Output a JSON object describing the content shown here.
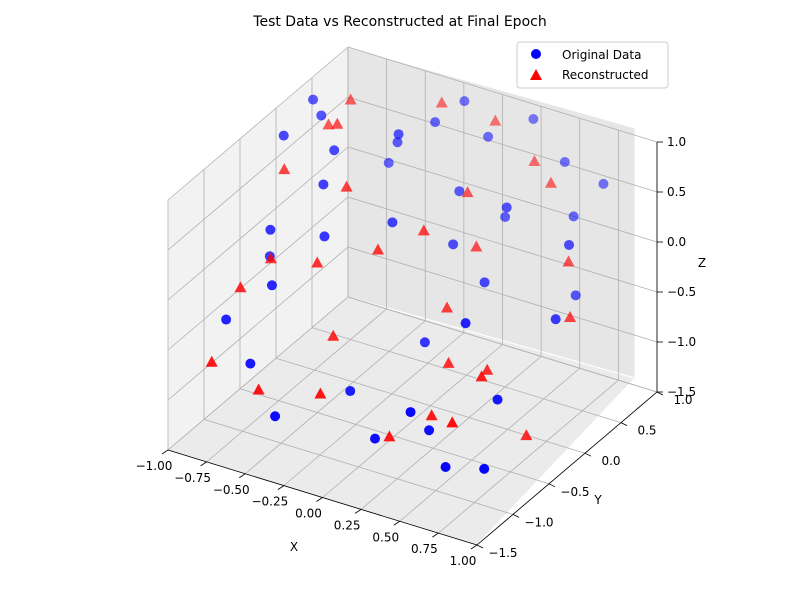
{
  "chart_data": {
    "type": "scatter",
    "title": "Test Data vs Reconstructed at Final Epoch",
    "xlabel": "X",
    "ylabel": "Y",
    "zlabel": "Z",
    "xlim": [
      -1.0,
      1.0
    ],
    "ylim": [
      -1.5,
      1.0
    ],
    "zlim": [
      -1.5,
      1.0
    ],
    "xticks": [
      "−1.00",
      "−0.75",
      "−0.50",
      "−0.25",
      "0.00",
      "0.25",
      "0.50",
      "0.75",
      "1.00"
    ],
    "yticks": [
      "−1.5",
      "−1.0",
      "−0.5",
      "0.0",
      "0.5",
      "1.0"
    ],
    "zticks": [
      "−1.5",
      "−1.0",
      "−0.5",
      "0.0",
      "0.5",
      "1.0"
    ],
    "grid": true,
    "legend_position": "top-right",
    "series": [
      {
        "name": "Original Data",
        "color": "#0000ff",
        "marker": "circle",
        "points": [
          [
            -0.95,
            0.0,
            0.75
          ],
          [
            -0.9,
            0.3,
            0.95
          ],
          [
            -0.8,
            0.2,
            0.9
          ],
          [
            -0.6,
            -0.2,
            0.55
          ],
          [
            -0.4,
            0.4,
            0.7
          ],
          [
            -0.2,
            0.9,
            0.9
          ],
          [
            0.0,
            0.8,
            0.7
          ],
          [
            0.2,
            1.0,
            0.85
          ],
          [
            0.45,
            0.9,
            0.6
          ],
          [
            0.6,
            0.7,
            0.25
          ],
          [
            0.8,
            0.3,
            -0.2
          ],
          [
            0.95,
            -0.3,
            0.0
          ],
          [
            -0.85,
            -0.4,
            0.1
          ],
          [
            -0.7,
            -0.7,
            -0.2
          ],
          [
            -0.5,
            -0.4,
            0.2
          ],
          [
            -0.2,
            -0.1,
            0.3
          ],
          [
            0.1,
            0.1,
            0.1
          ],
          [
            0.35,
            0.0,
            -0.1
          ],
          [
            0.6,
            -0.8,
            0.1
          ],
          [
            0.9,
            -1.0,
            -0.4
          ],
          [
            -0.95,
            -0.8,
            -0.6
          ],
          [
            -0.7,
            -1.0,
            -0.8
          ],
          [
            -0.4,
            -1.3,
            -1.0
          ],
          [
            -0.1,
            -0.9,
            -0.85
          ],
          [
            0.2,
            -1.2,
            -1.0
          ],
          [
            0.5,
            -1.35,
            -0.5
          ],
          [
            0.75,
            -1.4,
            -0.9
          ],
          [
            1.0,
            -1.4,
            -0.8
          ],
          [
            -0.55,
            0.6,
            0.3
          ],
          [
            0.25,
            0.5,
            0.2
          ],
          [
            0.7,
            0.9,
            0.5
          ],
          [
            -0.3,
            0.2,
            0.95
          ],
          [
            0.0,
            0.4,
            0.4
          ],
          [
            0.15,
            -0.4,
            -0.55
          ],
          [
            -0.6,
            -0.05,
            0.8
          ],
          [
            0.4,
            0.2,
            0.55
          ],
          [
            0.85,
            0.1,
            0.45
          ],
          [
            -0.9,
            -0.3,
            -0.25
          ],
          [
            0.55,
            -1.2,
            -0.75
          ],
          [
            -0.25,
            0.6,
            0.85
          ]
        ]
      },
      {
        "name": "Reconstructed",
        "color": "#ff0000",
        "marker": "triangle",
        "points": [
          [
            -0.9,
            -0.1,
            0.5
          ],
          [
            -0.8,
            0.3,
            0.75
          ],
          [
            -0.3,
            0.8,
            0.9
          ],
          [
            0.0,
            0.9,
            0.8
          ],
          [
            0.3,
            0.8,
            0.6
          ],
          [
            0.8,
            0.2,
            0.2
          ],
          [
            0.95,
            -0.1,
            -0.1
          ],
          [
            -0.95,
            -0.6,
            -0.4
          ],
          [
            -0.8,
            -0.5,
            -0.1
          ],
          [
            -0.5,
            -0.5,
            0.0
          ],
          [
            -0.2,
            -0.3,
            0.15
          ],
          [
            0.2,
            -0.2,
            -0.3
          ],
          [
            0.6,
            -0.5,
            -0.55
          ],
          [
            0.9,
            -0.6,
            -1.0
          ],
          [
            -0.95,
            -1.0,
            -0.9
          ],
          [
            -0.6,
            -1.1,
            -0.95
          ],
          [
            -0.2,
            -1.1,
            -0.8
          ],
          [
            0.2,
            -1.0,
            -1.1
          ],
          [
            0.45,
            -0.95,
            -0.8
          ],
          [
            0.7,
            -1.2,
            -0.6
          ],
          [
            -0.45,
            -0.2,
            0.6
          ],
          [
            0.1,
            0.3,
            0.5
          ],
          [
            0.5,
            0.6,
            0.6
          ],
          [
            -0.65,
            0.1,
            0.95
          ],
          [
            0.35,
            -0.5,
            -0.6
          ],
          [
            -0.35,
            -0.6,
            -0.6
          ],
          [
            0.05,
            -0.2,
            0.4
          ],
          [
            0.75,
            -0.9,
            -0.3
          ],
          [
            -0.75,
            0.5,
            0.9
          ],
          [
            0.25,
            0.1,
            0.15
          ]
        ]
      }
    ]
  }
}
